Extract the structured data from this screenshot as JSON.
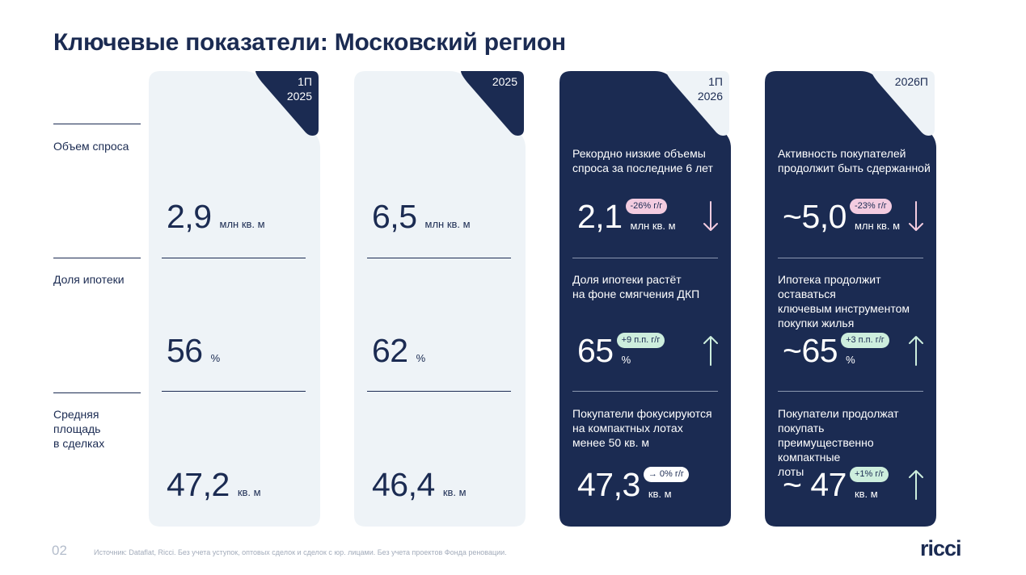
{
  "title": "Ключевые показатели: Московский регион",
  "rows": [
    {
      "label": "Объем спроса"
    },
    {
      "label": "Доля ипотеки"
    },
    {
      "label": "Средняя\nплощадь\nв сделках"
    }
  ],
  "columns": [
    {
      "period": "1П\n2025",
      "cells": [
        {
          "value": "2,9",
          "unit": "млн кв. м"
        },
        {
          "value": "56",
          "unit": "%"
        },
        {
          "value": "47,2",
          "unit": "кв. м"
        }
      ]
    },
    {
      "period": "2025",
      "cells": [
        {
          "value": "6,5",
          "unit": "млн кв. м"
        },
        {
          "value": "62",
          "unit": "%"
        },
        {
          "value": "46,4",
          "unit": "кв. м"
        }
      ]
    },
    {
      "period": "1П\n2026",
      "cells": [
        {
          "desc": "Рекордно низкие объемы\nспроса за последние 6 лет",
          "value": "2,1",
          "unit": "млн кв. м",
          "badge": "-26% г/г",
          "badge_color": "#f3cce0",
          "trend": "down",
          "arrow_color": "#f3cce0"
        },
        {
          "desc": "Доля ипотеки растёт\nна фоне смягчения ДКП",
          "value": "65",
          "unit": "%",
          "badge": "+9 п.п. г/г",
          "badge_color": "#cdeedd",
          "trend": "up",
          "arrow_color": "#cdeedd"
        },
        {
          "desc": "Покупатели фокусируются\nна компактных лотах\nменее 50 кв. м",
          "value": "47,3",
          "unit": "кв. м",
          "badge": "→ 0% г/г",
          "badge_color": "#ffffff",
          "trend": "none"
        }
      ]
    },
    {
      "period": "2026П",
      "cells": [
        {
          "desc": "Активность покупателей\nпродолжит быть сдержанной",
          "value": "~5,0",
          "unit": "млн кв. м",
          "badge": "-23% г/г",
          "badge_color": "#f3cce0",
          "trend": "down",
          "arrow_color": "#f3cce0"
        },
        {
          "desc": "Ипотека продолжит оставаться\nключевым инструментом\nпокупки жилья",
          "value": "~65",
          "unit": "%",
          "badge": "+3 п.п. г/г",
          "badge_color": "#cdeedd",
          "trend": "up",
          "arrow_color": "#cdeedd"
        },
        {
          "desc": "Покупатели продолжат покупать\nпреимущественно компактные\nлоты",
          "value": "~ 47",
          "unit": "кв. м",
          "badge": "+1% г/г",
          "badge_color": "#cdeedd",
          "trend": "up",
          "arrow_color": "#cdeedd"
        }
      ]
    }
  ],
  "footer": {
    "page": "02",
    "source": "Источник: Dataflat, Ricci. Без учета уступок, оптовых сделок и сделок с юр. лицами. Без учета проектов Фонда реновации.",
    "logo": "ricci"
  },
  "colors": {
    "navy": "#1b2b52",
    "light": "#eef3f7"
  }
}
